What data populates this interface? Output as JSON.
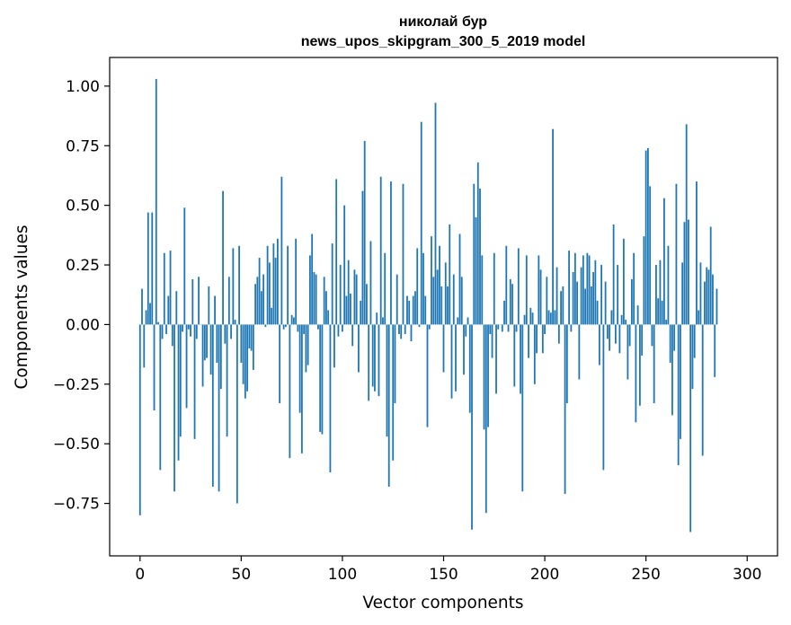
{
  "chart_data": {
    "type": "bar",
    "title_line1": "николай бур",
    "title_line2": "news_upos_skipgram_300_5_2019 model",
    "xlabel": "Vector components",
    "ylabel": "Components values",
    "xlim": [
      -15,
      315
    ],
    "ylim": [
      -0.97,
      1.12
    ],
    "xticks": [
      0,
      50,
      100,
      150,
      200,
      250,
      300
    ],
    "yticks": [
      -0.75,
      -0.5,
      -0.25,
      0.0,
      0.25,
      0.5,
      0.75,
      1.0
    ],
    "ytick_labels": [
      "−0.75",
      "−0.50",
      "−0.25",
      "0.00",
      "0.25",
      "0.50",
      "0.75",
      "1.00"
    ],
    "bar_color": "#1f77b4",
    "series": [
      {
        "values": [
          -0.8,
          0.15,
          -0.18,
          0.06,
          0.47,
          0.09,
          0.47,
          -0.36,
          1.03,
          0.01,
          -0.61,
          -0.06,
          0.3,
          -0.04,
          0.12,
          0.31,
          -0.09,
          -0.7,
          0.14,
          -0.57,
          -0.47,
          -0.03,
          0.49,
          -0.35,
          -0.02,
          -0.05,
          0.19,
          -0.48,
          -0.06,
          0.2,
          0.0,
          -0.26,
          -0.15,
          -0.14,
          0.16,
          -0.21,
          -0.68,
          0.12,
          -0.16,
          -0.7,
          -0.27,
          0.56,
          -0.08,
          -0.47,
          0.2,
          -0.06,
          0.32,
          0.02,
          -0.75,
          0.33,
          -0.16,
          -0.25,
          -0.31,
          -0.28,
          -0.1,
          -0.11,
          -0.19,
          0.17,
          0.2,
          0.28,
          0.14,
          0.21,
          -0.01,
          0.33,
          0.26,
          0.07,
          0.34,
          0.28,
          0.36,
          -0.33,
          0.62,
          -0.02,
          -0.01,
          0.33,
          -0.56,
          0.04,
          0.03,
          0.36,
          -0.03,
          -0.37,
          -0.54,
          -0.04,
          -0.2,
          -0.17,
          0.29,
          0.38,
          0.22,
          0.21,
          -0.02,
          -0.45,
          -0.46,
          0.2,
          0.14,
          0.06,
          -0.62,
          0.34,
          -0.18,
          0.61,
          -0.05,
          0.25,
          -0.03,
          0.5,
          0.12,
          0.27,
          0.13,
          -0.09,
          0.23,
          0.21,
          -0.2,
          0.1,
          0.56,
          0.77,
          0.17,
          -0.32,
          0.35,
          -0.26,
          -0.28,
          0.05,
          -0.3,
          0.62,
          0.03,
          0.3,
          -0.47,
          -0.68,
          0.6,
          -0.57,
          -0.33,
          0.21,
          -0.04,
          -0.06,
          0.59,
          -0.04,
          0.12,
          0.1,
          -0.07,
          0.12,
          0.14,
          0.32,
          -0.01,
          0.85,
          0.3,
          0.12,
          -0.43,
          -0.02,
          0.37,
          0.2,
          0.93,
          0.23,
          0.33,
          0.16,
          -0.2,
          0.26,
          0.16,
          0.42,
          -0.31,
          0.21,
          -0.28,
          0.03,
          0.38,
          0.2,
          -0.21,
          -0.05,
          0.03,
          -0.37,
          -0.86,
          0.59,
          0.45,
          0.68,
          0.57,
          0.29,
          -0.44,
          -0.79,
          -0.43,
          -0.04,
          -0.14,
          0.3,
          -0.29,
          -0.02,
          0.0,
          -0.03,
          0.1,
          0.33,
          -0.03,
          0.19,
          0.17,
          -0.26,
          -0.03,
          0.32,
          -0.29,
          -0.7,
          0.04,
          0.29,
          -0.14,
          0.07,
          0.05,
          -0.25,
          -0.12,
          0.29,
          0.23,
          -0.12,
          -0.04,
          0.2,
          0.06,
          0.05,
          0.82,
          0.06,
          0.24,
          -0.08,
          0.14,
          0.16,
          -0.71,
          -0.33,
          0.31,
          -0.03,
          0.22,
          0.3,
          0.18,
          -0.23,
          0.24,
          0.29,
          0.15,
          0.3,
          0.29,
          0.16,
          0.22,
          0.27,
          0.1,
          -0.17,
          0.25,
          -0.61,
          0.18,
          -0.06,
          -0.11,
          0.06,
          0.42,
          -0.08,
          0.25,
          -0.12,
          0.04,
          0.36,
          0.02,
          -0.23,
          -0.09,
          0.19,
          0.3,
          -0.41,
          0.08,
          -0.34,
          -0.13,
          0.37,
          0.73,
          0.74,
          0.58,
          -0.09,
          -0.33,
          0.25,
          0.11,
          0.27,
          0.1,
          0.53,
          0.02,
          0.33,
          -0.16,
          -0.38,
          -0.11,
          0.59,
          -0.59,
          -0.48,
          0.26,
          0.43,
          0.84,
          0.44,
          -0.87,
          -0.27,
          -0.14,
          0.6,
          0.06,
          0.26,
          -0.55,
          0.18,
          0.24,
          0.23,
          0.41,
          0.21,
          -0.22,
          0.15
        ]
      }
    ]
  }
}
